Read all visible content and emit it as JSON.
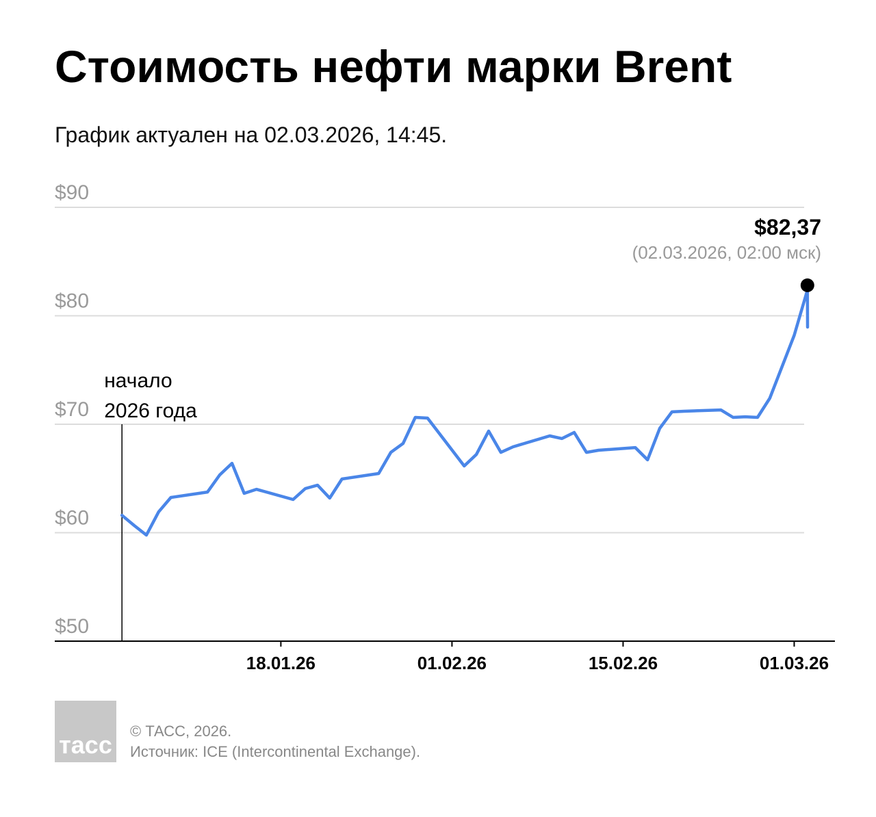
{
  "chart_data": {
    "type": "line",
    "title": "Стоимость нефти марки Brent",
    "subtitle": "График актуален на 02.03.2026, 14:45.",
    "x": [
      "2026-01-05",
      "2026-01-06",
      "2026-01-07",
      "2026-01-08",
      "2026-01-09",
      "2026-01-12",
      "2026-01-13",
      "2026-01-14",
      "2026-01-15",
      "2026-01-16",
      "2026-01-19",
      "2026-01-20",
      "2026-01-21",
      "2026-01-22",
      "2026-01-23",
      "2026-01-26",
      "2026-01-27",
      "2026-01-28",
      "2026-01-29",
      "2026-01-30",
      "2026-02-02",
      "2026-02-03",
      "2026-02-04",
      "2026-02-05",
      "2026-02-06",
      "2026-02-09",
      "2026-02-10",
      "2026-02-11",
      "2026-02-12",
      "2026-02-13",
      "2026-02-16",
      "2026-02-17",
      "2026-02-18",
      "2026-02-19",
      "2026-02-20",
      "2026-02-23",
      "2026-02-24",
      "2026-02-25",
      "2026-02-26",
      "2026-02-27",
      "2026-03-01",
      "2026-03-02T02:00",
      "2026-03-02T02:15"
    ],
    "series": [
      {
        "name": "Brent",
        "color": "#4a86e8",
        "values": [
          61.6,
          60.66,
          59.78,
          61.92,
          63.25,
          63.75,
          65.33,
          66.4,
          63.63,
          64.0,
          63.06,
          64.07,
          64.38,
          63.19,
          64.95,
          65.46,
          67.41,
          68.23,
          70.63,
          70.57,
          66.15,
          67.22,
          69.37,
          67.41,
          67.92,
          68.93,
          68.68,
          69.24,
          67.41,
          67.6,
          67.85,
          66.72,
          69.62,
          71.14,
          71.2,
          71.32,
          70.63,
          70.69,
          70.63,
          72.4,
          78.2,
          82.37,
          78.96
        ],
        "value_labels": {
          "41": "$82,37"
        }
      }
    ],
    "annotations": [
      {
        "text": "(02.03.2026, 02:00 мск)"
      },
      {
        "lines": [
          "начало",
          "2026 года"
        ]
      }
    ],
    "xlim": [
      "2025-12-30T12:00",
      "2026-03-04T08:00"
    ],
    "xticks": [
      {
        "value": "2026-01-18",
        "label": "18.01.26"
      },
      {
        "value": "2026-02-01",
        "label": "01.02.26"
      },
      {
        "value": "2026-02-15",
        "label": "15.02.26"
      },
      {
        "value": "2026-03-01",
        "label": "01.03.26"
      }
    ],
    "ylim": [
      50,
      90
    ],
    "yticks": [
      {
        "value": 50,
        "label": "$50"
      },
      {
        "value": 60,
        "label": "$60"
      },
      {
        "value": 70,
        "label": "$70"
      },
      {
        "value": 80,
        "label": "$80"
      },
      {
        "value": 90,
        "label": "$90"
      }
    ],
    "grid": true
  },
  "footer": {
    "logo": "тасс",
    "copyright": "© ТАСС, 2026.",
    "source": "Источник: ICE (Intercontinental Exchange)."
  }
}
